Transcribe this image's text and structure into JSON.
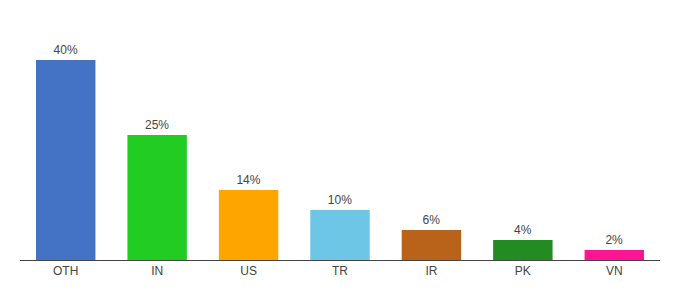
{
  "chart_data": {
    "type": "bar",
    "categories": [
      "OTH",
      "IN",
      "US",
      "TR",
      "IR",
      "PK",
      "VN"
    ],
    "values": [
      40,
      25,
      14,
      10,
      6,
      4,
      2
    ],
    "value_labels": [
      "40%",
      "25%",
      "14%",
      "10%",
      "6%",
      "4%",
      "2%"
    ],
    "colors": [
      "#4472C4",
      "#22CC22",
      "#FFA500",
      "#6EC6E6",
      "#B8621A",
      "#228B22",
      "#FF1493"
    ],
    "ylim": [
      0,
      48
    ],
    "data_labels": true,
    "tick_labels": "x",
    "grid": false
  }
}
